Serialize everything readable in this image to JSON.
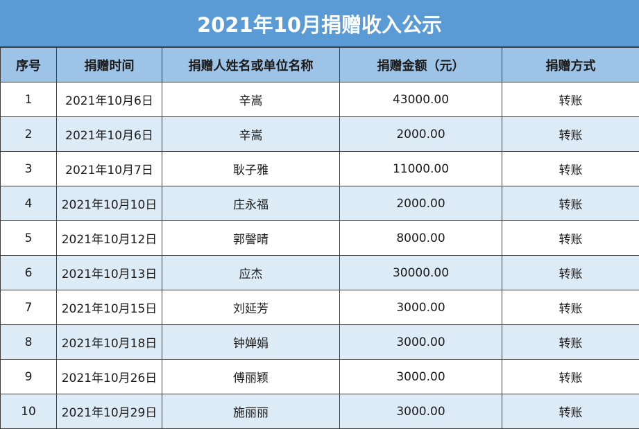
{
  "title": "2021年10月捐赠收入公示",
  "columns": [
    "序号",
    "捐赠时间",
    "捐赠人姓名或单位名称",
    "捐赠金额（元）",
    "捐赠方式"
  ],
  "rows": [
    [
      "1",
      "2021年10月6日",
      "辛嵩",
      "43000.00",
      "转账"
    ],
    [
      "2",
      "2021年10月6日",
      "辛嵩",
      "2000.00",
      "转账"
    ],
    [
      "3",
      "2021年10月7日",
      "耿子雅",
      "11000.00",
      "转账"
    ],
    [
      "4",
      "2021年10月10日",
      "庄永福",
      "2000.00",
      "转账"
    ],
    [
      "5",
      "2021年10月12日",
      "郭謦晴",
      "8000.00",
      "转账"
    ],
    [
      "6",
      "2021年10月13日",
      "应杰",
      "30000.00",
      "转账"
    ],
    [
      "7",
      "2021年10月15日",
      "刘延芳",
      "3000.00",
      "转账"
    ],
    [
      "8",
      "2021年10月18日",
      "钟婵娟",
      "3000.00",
      "转账"
    ],
    [
      "9",
      "2021年10月26日",
      "傅丽颖",
      "3000.00",
      "转账"
    ],
    [
      "10",
      "2021年10月29日",
      "施丽丽",
      "3000.00",
      "转账"
    ]
  ],
  "colors": {
    "title_bg": "#5b9bd5",
    "header_bg": "#9dc3e6",
    "alt_row_bg": "#ddebf7",
    "row_bg": "#ffffff",
    "grid": "#3c3c3c"
  }
}
